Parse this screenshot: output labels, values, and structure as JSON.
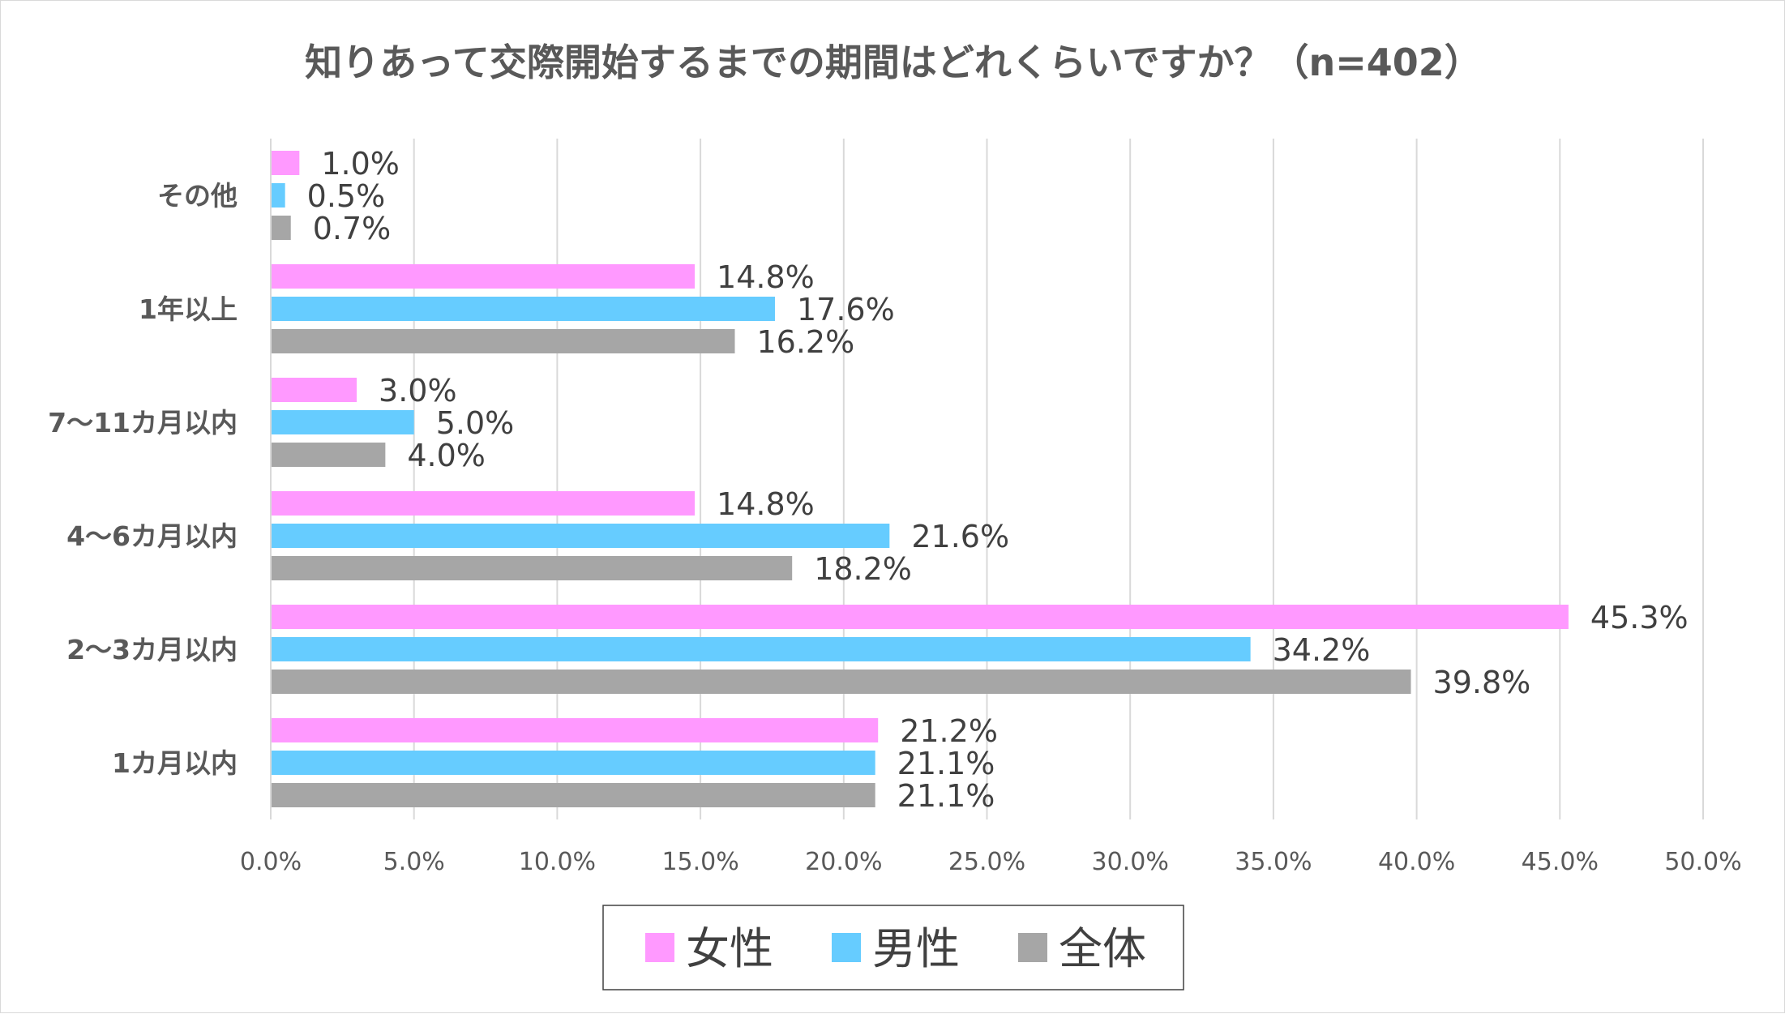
{
  "chart_data": {
    "type": "bar",
    "orientation": "horizontal",
    "title": "知りあって交際開始するまでの期間はどれくらいですか？（n=402）",
    "categories": [
      "その他",
      "1年以上",
      "7～11カ月以内",
      "4～6カ月以内",
      "2～3カ月以内",
      "1カ月以内"
    ],
    "series": [
      {
        "name": "女性",
        "color": "#ff99ff",
        "values": [
          1.0,
          14.8,
          3.0,
          14.8,
          45.3,
          21.2
        ]
      },
      {
        "name": "男性",
        "color": "#66ccff",
        "values": [
          0.5,
          17.6,
          5.0,
          21.6,
          34.2,
          21.1
        ]
      },
      {
        "name": "全体",
        "color": "#a6a6a6",
        "values": [
          0.7,
          16.2,
          4.0,
          18.2,
          39.8,
          21.1
        ]
      }
    ],
    "value_format_suffix": "%",
    "xlim": [
      0,
      50
    ],
    "xticks": [
      "0.0%",
      "5.0%",
      "10.0%",
      "15.0%",
      "20.0%",
      "25.0%",
      "30.0%",
      "35.0%",
      "40.0%",
      "45.0%",
      "50.0%"
    ],
    "grid": true,
    "legend_position": "bottom"
  }
}
